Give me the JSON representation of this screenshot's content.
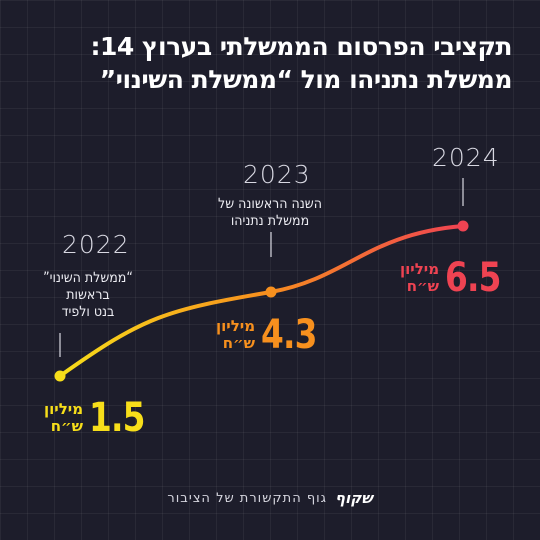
{
  "title": {
    "line1": "תקציבי הפרסום הממשלתי בערוץ 14:",
    "line2": "ממשלת נתניהו מול “ממשלת השינוי”"
  },
  "chart_data": {
    "type": "line",
    "x": [
      "2022",
      "2023",
      "2024"
    ],
    "series": [
      {
        "values": [
          1.5,
          4.3,
          6.5
        ]
      }
    ],
    "value_labels": [
      "1.5",
      "4.3",
      "6.5"
    ],
    "unit": {
      "line1": "מיליון",
      "line2": "ש״ח"
    },
    "annotations": [
      {
        "lines": [
          "“ממשלת השינוי”",
          "בראשות",
          "בנט ולפיד"
        ]
      },
      {
        "lines": [
          "השנה הראשונה של",
          "ממשלת נתניהו"
        ]
      }
    ],
    "colors": [
      "#f7de1a",
      "#f7901e",
      "#ef4352"
    ],
    "grid": true
  },
  "footer": {
    "logo": "שקוף",
    "text": "גוף התקשורת של הציבור"
  }
}
